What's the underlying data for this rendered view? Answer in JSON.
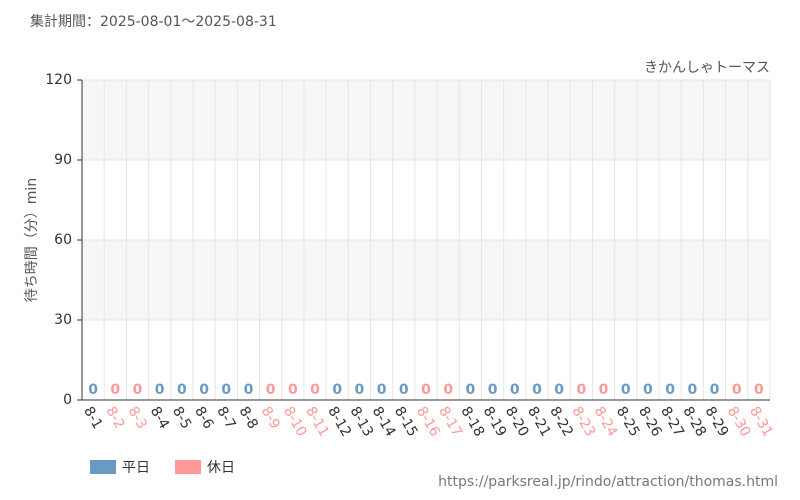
{
  "chart_data": {
    "type": "bar",
    "title": "集計期間：2025-08-01〜2025-08-31",
    "subtitle": "きかんしゃトーマス",
    "y_label": "待ち時間（分）min",
    "source": "https://parksreal.jp/rindo/attraction/thomas.html",
    "categories": [
      "8-1",
      "8-2",
      "8-3",
      "8-4",
      "8-5",
      "8-6",
      "8-7",
      "8-8",
      "8-9",
      "8-10",
      "8-11",
      "8-12",
      "8-13",
      "8-14",
      "8-15",
      "8-16",
      "8-17",
      "8-18",
      "8-19",
      "8-20",
      "8-21",
      "8-22",
      "8-23",
      "8-24",
      "8-25",
      "8-26",
      "8-27",
      "8-28",
      "8-29",
      "8-30",
      "8-31"
    ],
    "series": [
      {
        "name": "平日",
        "color": "#6a9ac4",
        "values": [
          0,
          null,
          null,
          0,
          0,
          0,
          0,
          0,
          null,
          null,
          null,
          0,
          0,
          0,
          0,
          null,
          null,
          0,
          0,
          0,
          0,
          0,
          null,
          null,
          0,
          0,
          0,
          0,
          0,
          null,
          null
        ]
      },
      {
        "name": "休日",
        "color": "#ff9999",
        "values": [
          null,
          0,
          0,
          null,
          null,
          null,
          null,
          null,
          0,
          0,
          0,
          null,
          null,
          null,
          null,
          0,
          0,
          null,
          null,
          null,
          null,
          null,
          0,
          0,
          null,
          null,
          null,
          null,
          null,
          0,
          0
        ]
      }
    ],
    "ylim": [
      0,
      120
    ],
    "yticks": [
      0,
      30,
      60,
      90,
      120
    ],
    "grid": true,
    "legend": "bottom-left"
  }
}
